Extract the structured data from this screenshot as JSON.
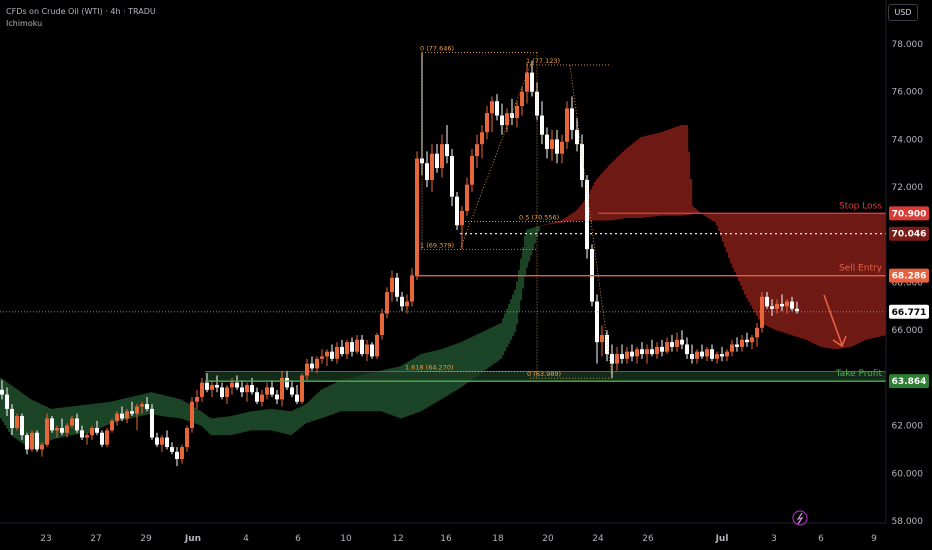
{
  "header": {
    "title": "CFDs on Crude Oil (WTI) · 4h · TRADU",
    "indicator": "Ichimoku",
    "currency": "USD"
  },
  "colors": {
    "bull": "#e8673a",
    "bear": "#ffffff",
    "kumo_bull": "#1f4a2a",
    "kumo_bear": "#7a1c18",
    "stop": "#d93b36",
    "entry": "#e8613f",
    "take_profit": "#4caf50",
    "fib": "#f0a040"
  },
  "chart_data": {
    "type": "candlestick",
    "y_axis": {
      "ticks": [
        "58.000",
        "60.000",
        "62.000",
        "64.000",
        "66.000",
        "68.000",
        "70.000",
        "72.000",
        "74.000",
        "76.000",
        "78.000"
      ]
    },
    "x_axis": {
      "ticks": [
        "23",
        "27",
        "29",
        "Jun",
        "4",
        "6",
        "10",
        "12",
        "16",
        "18",
        "20",
        "24",
        "26",
        "Jul",
        "3",
        "6",
        "9"
      ]
    },
    "levels": [
      {
        "name": "Stop Loss",
        "price": "70.900",
        "value": 70.9
      },
      {
        "name": "",
        "price": "70.046",
        "value": 70.046
      },
      {
        "name": "Sell Entry",
        "price": "68.286",
        "value": 68.286
      },
      {
        "name": "",
        "price": "66.771",
        "value": 66.771
      },
      {
        "name": "Take Profit",
        "price": "63.864",
        "value": 63.864
      }
    ],
    "fib_labels": [
      "0 (77.646)",
      "1 (77.123)",
      "0.5 (70.556)",
      "1 (69.379)",
      "1.618 (64.270)",
      "0 (63.989)"
    ]
  }
}
